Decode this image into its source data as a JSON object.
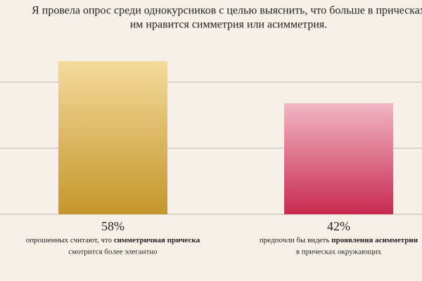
{
  "chart_data": {
    "type": "bar",
    "title": [
      "Я провела опрос среди однокурсников с целью выяснить, что больше в прическах",
      "им нравится симметрия или асимметрия."
    ],
    "values": [
      58,
      42
    ],
    "value_labels": [
      "58%",
      "42%"
    ],
    "notes": [
      {
        "lead": "опрошенных считают, что ",
        "bold": "симметричная прическа",
        "tail": "смотрится более элегантно"
      },
      {
        "lead": "предпочли бы видеть ",
        "bold": "проявления асимметрии",
        "tail": "в прическах окружающих"
      }
    ],
    "colors": [
      [
        "#f4da9c",
        "#c4962a"
      ],
      [
        "#f1b6c4",
        "#c82a50"
      ]
    ],
    "ylim": [
      0,
      60
    ],
    "yticks": [
      0,
      25,
      50
    ],
    "grid": true,
    "background": "#f6f0e7"
  }
}
